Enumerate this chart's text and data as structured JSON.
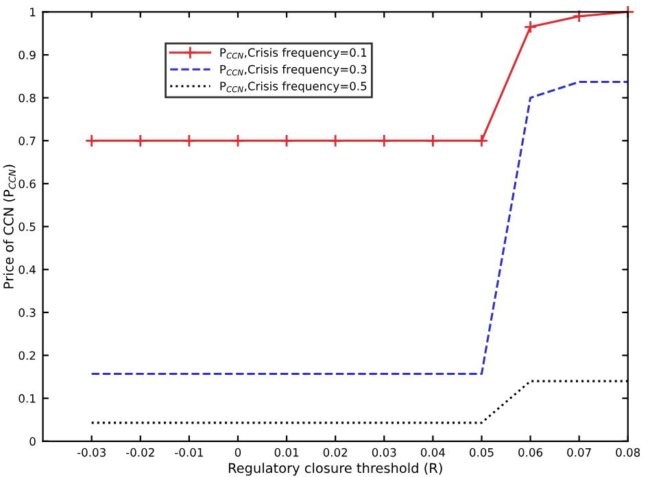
{
  "chart_data": {
    "type": "line",
    "xlabel": "Regulatory closure threshold (R)",
    "ylabel": "Price of CCN (P$_{CCN}$)",
    "x": [
      -0.03,
      -0.02,
      -0.01,
      0,
      0.01,
      0.02,
      0.03,
      0.04,
      0.05,
      0.06,
      0.07,
      0.08
    ],
    "series": [
      {
        "name": "P$_{CCN}$,Crisis frequency=0.1",
        "color": "#e8262b",
        "marker": "cross",
        "line_style": "solid",
        "values": [
          0.7,
          0.7,
          0.7,
          0.7,
          0.7,
          0.7,
          0.7,
          0.7,
          0.7,
          0.965,
          0.99,
          1.0
        ]
      },
      {
        "name": "P$_{CCN}$,Crisis frequency=0.3",
        "color": "#2a2ee0",
        "marker": "none",
        "line_style": "dashed",
        "values": [
          0.157,
          0.157,
          0.157,
          0.157,
          0.157,
          0.157,
          0.157,
          0.157,
          0.157,
          0.8,
          0.837,
          0.837
        ]
      },
      {
        "name": "P$_{CCN}$,Crisis frequency=0.5",
        "color": "#000000",
        "marker": "none",
        "line_style": "dotted",
        "values": [
          0.043,
          0.043,
          0.043,
          0.043,
          0.043,
          0.043,
          0.043,
          0.043,
          0.043,
          0.14,
          0.14,
          0.14
        ]
      }
    ],
    "xlim": [
      -0.04,
      0.08
    ],
    "xticks": [
      -0.03,
      -0.02,
      -0.01,
      0,
      0.01,
      0.02,
      0.03,
      0.04,
      0.05,
      0.06,
      0.07,
      0.08
    ],
    "ylim": [
      0,
      1
    ],
    "yticks": [
      0,
      0.1,
      0.2,
      0.3,
      0.4,
      0.5,
      0.6,
      0.7,
      0.8,
      0.9,
      1
    ],
    "grid": false,
    "legend": "top left"
  }
}
